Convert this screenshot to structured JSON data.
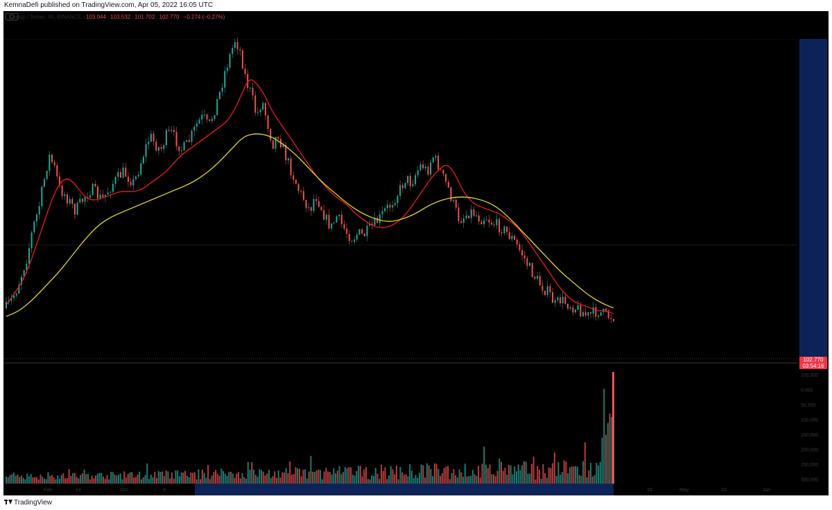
{
  "header": {
    "published": "KemnaDefi published on TradingView.com, Apr 05, 2022 16:05 UTC"
  },
  "legend": {
    "symbol": "Energi / Tether, 4h, BINANCE",
    "open": "103.044",
    "high": "103.532",
    "low": "101.702",
    "close": "102.770",
    "change": "−0.274 (−0.27%)"
  },
  "last_price": {
    "value": "102.770",
    "countdown": "03:54:16"
  },
  "footer": {
    "brand": "TradingView"
  },
  "colors": {
    "background": "#000000",
    "up": "#26a69a",
    "down": "#ef5350",
    "ma_fast": "#e0191f",
    "ma_slow": "#d6cd2a",
    "price_tag": "#f23645",
    "range_highlight": "#0d2358"
  },
  "chart_data": {
    "type": "candlestick",
    "title": "",
    "series": [
      {
        "name": "price",
        "values": [
          0.03,
          0.06,
          0.1,
          0.16,
          0.22,
          0.32,
          0.38,
          0.48,
          0.58,
          0.54,
          0.46,
          0.44,
          0.41,
          0.38,
          0.41,
          0.44,
          0.46,
          0.44,
          0.42,
          0.45,
          0.48,
          0.5,
          0.52,
          0.5,
          0.48,
          0.54,
          0.6,
          0.65,
          0.62,
          0.6,
          0.65,
          0.66,
          0.63,
          0.6,
          0.62,
          0.66,
          0.7,
          0.72,
          0.68,
          0.74,
          0.8,
          0.88,
          0.94,
          1.0,
          0.95,
          0.85,
          0.8,
          0.72,
          0.78,
          0.7,
          0.62,
          0.66,
          0.6,
          0.55,
          0.5,
          0.45,
          0.42,
          0.38,
          0.44,
          0.4,
          0.35,
          0.32,
          0.36,
          0.33,
          0.3,
          0.28,
          0.3,
          0.29,
          0.31,
          0.33,
          0.35,
          0.38,
          0.4,
          0.43,
          0.46,
          0.5,
          0.48,
          0.52,
          0.55,
          0.52,
          0.58,
          0.55,
          0.5,
          0.46,
          0.4,
          0.35,
          0.36,
          0.38,
          0.37,
          0.35,
          0.36,
          0.34,
          0.33,
          0.32,
          0.3,
          0.28,
          0.25,
          0.22,
          0.18,
          0.15,
          0.12,
          0.1,
          0.08,
          0.04,
          0.06,
          0.05,
          0.04,
          0.03,
          0.02,
          0.0,
          0.01,
          0.02,
          0.01,
          0.0,
          0.0
        ]
      },
      {
        "name": "ma_fast",
        "values": [
          0.04,
          0.08,
          0.12,
          0.18,
          0.26,
          0.34,
          0.42,
          0.48,
          0.5,
          0.48,
          0.44,
          0.42,
          0.42,
          0.43,
          0.44,
          0.45,
          0.45,
          0.45,
          0.46,
          0.48,
          0.5,
          0.52,
          0.55,
          0.58,
          0.6,
          0.62,
          0.64,
          0.66,
          0.68,
          0.7,
          0.74,
          0.8,
          0.86,
          0.84,
          0.8,
          0.74,
          0.7,
          0.66,
          0.62,
          0.58,
          0.54,
          0.5,
          0.47,
          0.44,
          0.42,
          0.4,
          0.37,
          0.35,
          0.33,
          0.32,
          0.32,
          0.33,
          0.35,
          0.38,
          0.42,
          0.46,
          0.5,
          0.53,
          0.55,
          0.52,
          0.46,
          0.42,
          0.4,
          0.39,
          0.38,
          0.37,
          0.35,
          0.33,
          0.3,
          0.26,
          0.22,
          0.18,
          0.14,
          0.1,
          0.07,
          0.05,
          0.04,
          0.03,
          0.02,
          0.02,
          0.01
        ]
      },
      {
        "name": "ma_slow",
        "values": [
          0.0,
          0.02,
          0.06,
          0.11,
          0.16,
          0.22,
          0.28,
          0.33,
          0.36,
          0.38,
          0.4,
          0.42,
          0.44,
          0.46,
          0.48,
          0.51,
          0.55,
          0.6,
          0.65,
          0.66,
          0.65,
          0.62,
          0.58,
          0.53,
          0.48,
          0.44,
          0.4,
          0.37,
          0.35,
          0.34,
          0.35,
          0.37,
          0.4,
          0.42,
          0.43,
          0.43,
          0.42,
          0.4,
          0.36,
          0.31,
          0.26,
          0.21,
          0.16,
          0.12,
          0.08,
          0.05,
          0.03
        ]
      }
    ],
    "volume_scale": [
      "100,000",
      "0.000",
      "50,000",
      "100,000",
      "150,000",
      "200,000",
      "250,000",
      "300,000"
    ],
    "x_ticks": [
      "Feb",
      "14",
      "Oct",
      "8",
      "15",
      "May",
      "15",
      "Jun"
    ],
    "grid": false,
    "legend_placement": "top-left"
  }
}
